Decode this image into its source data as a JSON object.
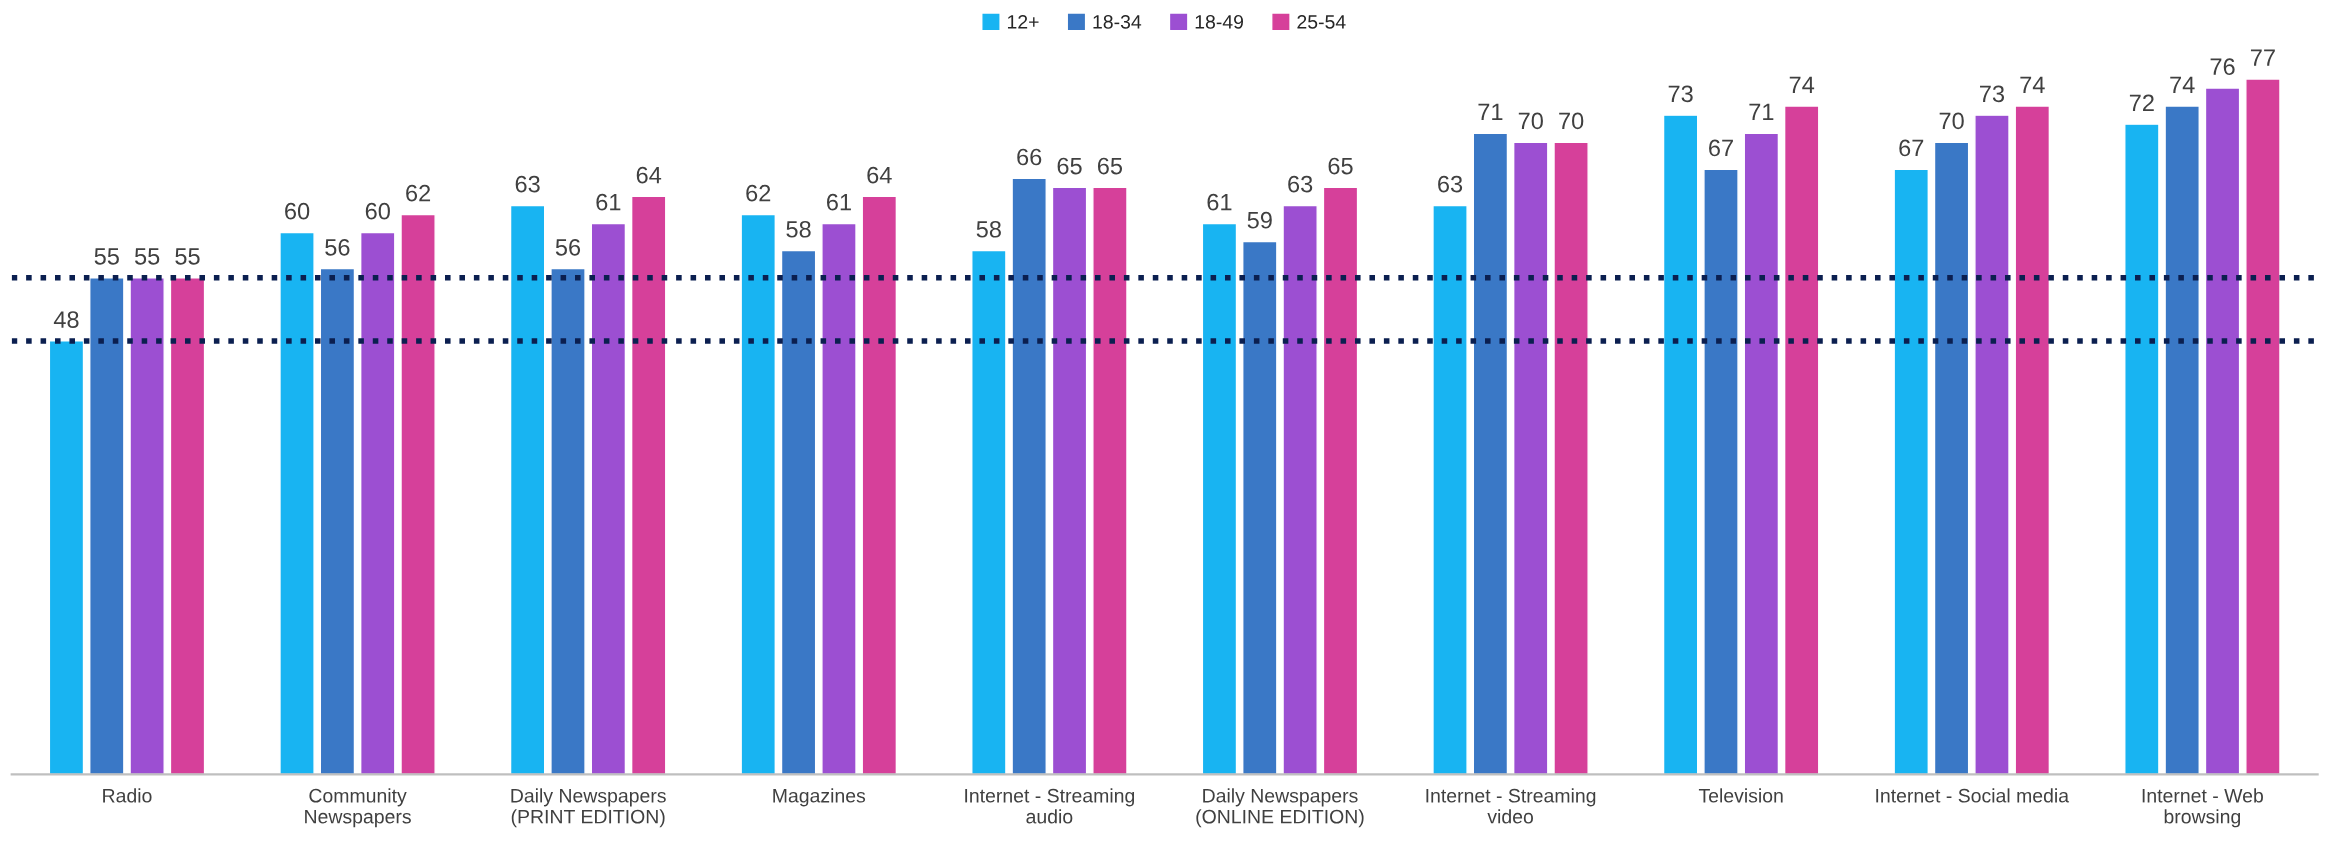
{
  "chart_data": {
    "type": "bar",
    "categories": [
      "Radio",
      "Community\nNewspapers",
      "Daily Newspapers\n(PRINT EDITION)",
      "Magazines",
      "Internet - Streaming\naudio",
      "Daily Newspapers\n(ONLINE EDITION)",
      "Internet - Streaming\nvideo",
      "Television",
      "Internet - Social media",
      "Internet - Web\nbrowsing"
    ],
    "series": [
      {
        "name": "12+",
        "color": "#18b4f2",
        "values": [
          48,
          60,
          63,
          62,
          58,
          61,
          63,
          73,
          67,
          72
        ]
      },
      {
        "name": "18-34",
        "color": "#3a78c6",
        "values": [
          55,
          56,
          56,
          58,
          66,
          59,
          71,
          67,
          70,
          74
        ]
      },
      {
        "name": "18-49",
        "color": "#9c4fd2",
        "values": [
          55,
          60,
          61,
          61,
          65,
          63,
          70,
          71,
          73,
          76
        ]
      },
      {
        "name": "25-54",
        "color": "#d6409a",
        "values": [
          55,
          62,
          64,
          64,
          65,
          65,
          70,
          74,
          74,
          77
        ]
      }
    ],
    "tick_labels": "x",
    "data_labels": true,
    "legend": "top",
    "grid": false,
    "ref_lines": [
      {
        "axis": "y",
        "value": 55,
        "color": "#0b1f50",
        "line_style": "dotted"
      },
      {
        "axis": "y",
        "value": 48,
        "color": "#0b1f50",
        "line_style": "dotted"
      }
    ]
  }
}
